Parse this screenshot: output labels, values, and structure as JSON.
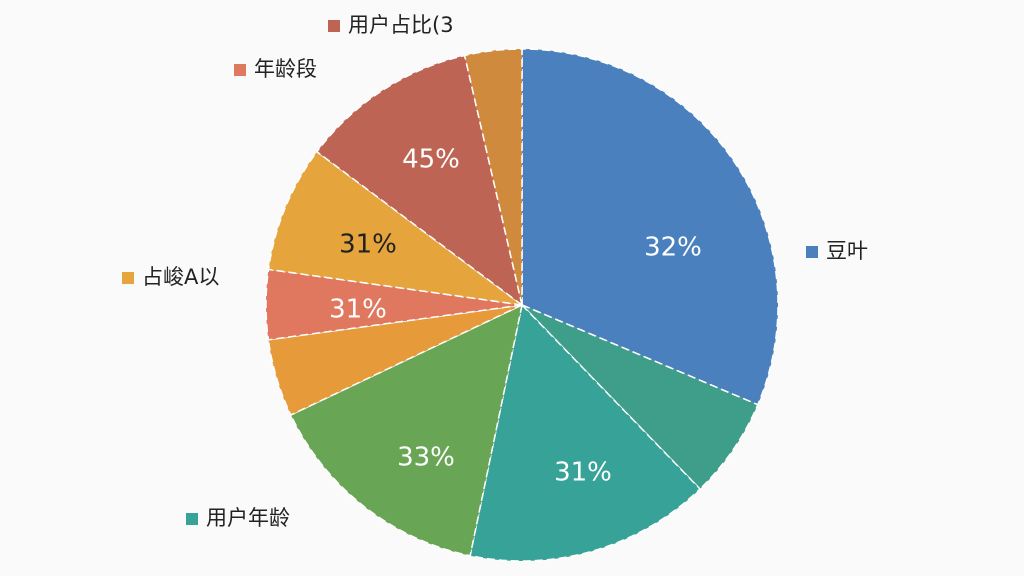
{
  "chart_data": {
    "type": "pie",
    "categories": [
      "豆叶",
      null,
      "用户年龄",
      null,
      null,
      "年龄段",
      "占峻A以",
      "用户占比(3",
      null
    ],
    "values": [
      31.4,
      6.4,
      15.5,
      14.7,
      4.9,
      4.4,
      8.0,
      11.2,
      3.6
    ],
    "colors": [
      "#4a80bd",
      "#3f9e8a",
      "#37a398",
      "#68a655",
      "#e69a3a",
      "#e0775f",
      "#e5a53c",
      "#bd6455",
      "#cf8a3e"
    ],
    "annotations": [
      "32%",
      "31%",
      "33%",
      "31%",
      "31%",
      "45%"
    ]
  }
}
